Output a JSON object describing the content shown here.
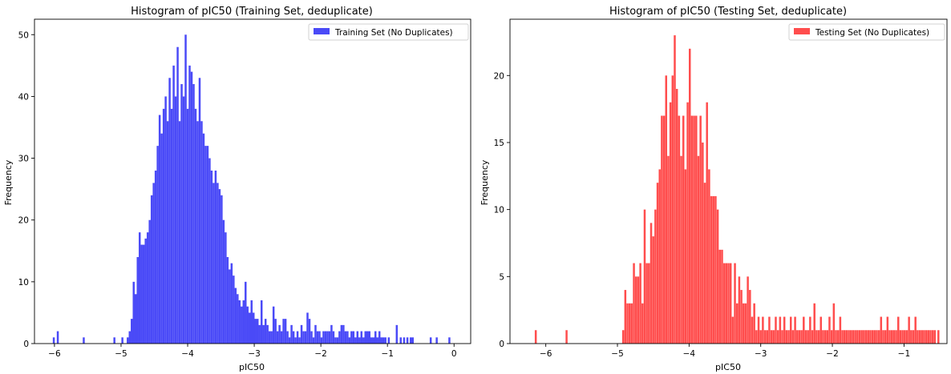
{
  "chart_data": [
    {
      "type": "bar",
      "title": "Histogram of pIC50 (Training Set, deduplicate)",
      "xlabel": "pIC50",
      "ylabel": "Frequency",
      "xlim": [
        -6.3,
        0.25
      ],
      "ylim": [
        0,
        52.5
      ],
      "xticks": [
        -6,
        -5,
        -4,
        -3,
        -2,
        -1,
        0
      ],
      "yticks": [
        0,
        10,
        20,
        30,
        40,
        50
      ],
      "legend": {
        "placement": "top-right",
        "label": "Training Set (No Duplicates)"
      },
      "color": "#4a4af7",
      "bin_width": 0.03,
      "bins": [
        [
          -6.01,
          1
        ],
        [
          -5.95,
          2
        ],
        [
          -5.56,
          1
        ],
        [
          -5.1,
          1
        ],
        [
          -4.98,
          1
        ],
        [
          -4.9,
          1
        ],
        [
          -4.87,
          2
        ],
        [
          -4.84,
          4
        ],
        [
          -4.81,
          10
        ],
        [
          -4.78,
          8
        ],
        [
          -4.75,
          14
        ],
        [
          -4.72,
          18
        ],
        [
          -4.69,
          16
        ],
        [
          -4.66,
          16
        ],
        [
          -4.63,
          17
        ],
        [
          -4.6,
          18
        ],
        [
          -4.57,
          20
        ],
        [
          -4.54,
          24
        ],
        [
          -4.51,
          26
        ],
        [
          -4.48,
          28
        ],
        [
          -4.45,
          32
        ],
        [
          -4.42,
          37
        ],
        [
          -4.39,
          34
        ],
        [
          -4.36,
          38
        ],
        [
          -4.33,
          40
        ],
        [
          -4.3,
          36
        ],
        [
          -4.27,
          43
        ],
        [
          -4.24,
          38
        ],
        [
          -4.21,
          45
        ],
        [
          -4.18,
          40
        ],
        [
          -4.15,
          48
        ],
        [
          -4.12,
          36
        ],
        [
          -4.09,
          42
        ],
        [
          -4.06,
          40
        ],
        [
          -4.03,
          50
        ],
        [
          -4.0,
          38
        ],
        [
          -3.97,
          45
        ],
        [
          -3.94,
          44
        ],
        [
          -3.91,
          42
        ],
        [
          -3.88,
          38
        ],
        [
          -3.85,
          36
        ],
        [
          -3.82,
          43
        ],
        [
          -3.79,
          36
        ],
        [
          -3.76,
          34
        ],
        [
          -3.73,
          32
        ],
        [
          -3.7,
          32
        ],
        [
          -3.67,
          30
        ],
        [
          -3.64,
          28
        ],
        [
          -3.61,
          26
        ],
        [
          -3.58,
          28
        ],
        [
          -3.55,
          26
        ],
        [
          -3.52,
          25
        ],
        [
          -3.49,
          24
        ],
        [
          -3.46,
          20
        ],
        [
          -3.43,
          18
        ],
        [
          -3.4,
          14
        ],
        [
          -3.37,
          12
        ],
        [
          -3.34,
          13
        ],
        [
          -3.31,
          11
        ],
        [
          -3.28,
          9
        ],
        [
          -3.25,
          8
        ],
        [
          -3.22,
          7
        ],
        [
          -3.19,
          6
        ],
        [
          -3.16,
          7
        ],
        [
          -3.13,
          10
        ],
        [
          -3.1,
          6
        ],
        [
          -3.07,
          5
        ],
        [
          -3.04,
          7
        ],
        [
          -3.01,
          5
        ],
        [
          -2.98,
          4
        ],
        [
          -2.95,
          4
        ],
        [
          -2.92,
          3
        ],
        [
          -2.89,
          7
        ],
        [
          -2.86,
          3
        ],
        [
          -2.83,
          4
        ],
        [
          -2.8,
          3
        ],
        [
          -2.77,
          2
        ],
        [
          -2.74,
          2
        ],
        [
          -2.71,
          6
        ],
        [
          -2.68,
          4
        ],
        [
          -2.65,
          2
        ],
        [
          -2.62,
          3
        ],
        [
          -2.59,
          2
        ],
        [
          -2.56,
          4
        ],
        [
          -2.53,
          4
        ],
        [
          -2.5,
          2
        ],
        [
          -2.47,
          1
        ],
        [
          -2.44,
          3
        ],
        [
          -2.41,
          2
        ],
        [
          -2.38,
          1
        ],
        [
          -2.35,
          2
        ],
        [
          -2.32,
          1
        ],
        [
          -2.29,
          3
        ],
        [
          -2.26,
          2
        ],
        [
          -2.23,
          2
        ],
        [
          -2.2,
          5
        ],
        [
          -2.17,
          4
        ],
        [
          -2.14,
          2
        ],
        [
          -2.11,
          1
        ],
        [
          -2.08,
          3
        ],
        [
          -2.05,
          2
        ],
        [
          -2.02,
          2
        ],
        [
          -1.99,
          1
        ],
        [
          -1.96,
          2
        ],
        [
          -1.93,
          2
        ],
        [
          -1.9,
          2
        ],
        [
          -1.87,
          2
        ],
        [
          -1.84,
          3
        ],
        [
          -1.81,
          2
        ],
        [
          -1.78,
          1
        ],
        [
          -1.75,
          1
        ],
        [
          -1.72,
          2
        ],
        [
          -1.69,
          3
        ],
        [
          -1.66,
          3
        ],
        [
          -1.63,
          2
        ],
        [
          -1.6,
          2
        ],
        [
          -1.57,
          1
        ],
        [
          -1.54,
          2
        ],
        [
          -1.51,
          2
        ],
        [
          -1.48,
          1
        ],
        [
          -1.45,
          2
        ],
        [
          -1.42,
          1
        ],
        [
          -1.39,
          2
        ],
        [
          -1.36,
          1
        ],
        [
          -1.33,
          2
        ],
        [
          -1.3,
          2
        ],
        [
          -1.27,
          2
        ],
        [
          -1.24,
          1
        ],
        [
          -1.21,
          1
        ],
        [
          -1.18,
          2
        ],
        [
          -1.15,
          1
        ],
        [
          -1.12,
          2
        ],
        [
          -1.09,
          1
        ],
        [
          -1.06,
          1
        ],
        [
          -1.03,
          1
        ],
        [
          -0.98,
          1
        ],
        [
          -0.86,
          3
        ],
        [
          -0.8,
          1
        ],
        [
          -0.75,
          1
        ],
        [
          -0.7,
          1
        ],
        [
          -0.65,
          1
        ],
        [
          -0.62,
          1
        ],
        [
          -0.35,
          1
        ],
        [
          -0.26,
          1
        ],
        [
          -0.07,
          1
        ]
      ]
    },
    {
      "type": "bar",
      "title": "Histogram of pIC50 (Testing Set, deduplicate)",
      "xlabel": "pIC50",
      "ylabel": "Frequency",
      "xlim": [
        -6.5,
        -0.4
      ],
      "ylim": [
        0,
        24.2
      ],
      "xticks": [
        -6,
        -5,
        -4,
        -3,
        -2,
        -1
      ],
      "yticks": [
        0,
        5,
        10,
        15,
        20
      ],
      "legend": {
        "placement": "top-right",
        "label": "Testing Set (No Duplicates)"
      },
      "color": "#ff4d4d",
      "bin_width": 0.028,
      "bins": [
        [
          -6.14,
          1
        ],
        [
          -5.71,
          1
        ],
        [
          -4.92,
          1
        ],
        [
          -4.89,
          4
        ],
        [
          -4.86,
          3
        ],
        [
          -4.83,
          3
        ],
        [
          -4.8,
          3
        ],
        [
          -4.77,
          6
        ],
        [
          -4.74,
          5
        ],
        [
          -4.71,
          5
        ],
        [
          -4.68,
          6
        ],
        [
          -4.65,
          3
        ],
        [
          -4.62,
          10
        ],
        [
          -4.59,
          6
        ],
        [
          -4.56,
          6
        ],
        [
          -4.53,
          9
        ],
        [
          -4.5,
          8
        ],
        [
          -4.47,
          10
        ],
        [
          -4.44,
          12
        ],
        [
          -4.41,
          13
        ],
        [
          -4.38,
          17
        ],
        [
          -4.35,
          17
        ],
        [
          -4.32,
          20
        ],
        [
          -4.29,
          14
        ],
        [
          -4.26,
          18
        ],
        [
          -4.23,
          20
        ],
        [
          -4.2,
          23
        ],
        [
          -4.17,
          19
        ],
        [
          -4.14,
          17
        ],
        [
          -4.11,
          14
        ],
        [
          -4.08,
          17
        ],
        [
          -4.05,
          13
        ],
        [
          -4.02,
          18
        ],
        [
          -3.99,
          22
        ],
        [
          -3.96,
          17
        ],
        [
          -3.93,
          17
        ],
        [
          -3.9,
          17
        ],
        [
          -3.87,
          14
        ],
        [
          -3.84,
          17
        ],
        [
          -3.81,
          15
        ],
        [
          -3.78,
          12
        ],
        [
          -3.75,
          18
        ],
        [
          -3.72,
          13
        ],
        [
          -3.69,
          11
        ],
        [
          -3.66,
          11
        ],
        [
          -3.63,
          11
        ],
        [
          -3.6,
          10
        ],
        [
          -3.57,
          7
        ],
        [
          -3.54,
          7
        ],
        [
          -3.51,
          6
        ],
        [
          -3.48,
          6
        ],
        [
          -3.45,
          6
        ],
        [
          -3.42,
          6
        ],
        [
          -3.39,
          2
        ],
        [
          -3.36,
          6
        ],
        [
          -3.33,
          3
        ],
        [
          -3.3,
          5
        ],
        [
          -3.27,
          4
        ],
        [
          -3.24,
          3
        ],
        [
          -3.21,
          3
        ],
        [
          -3.18,
          5
        ],
        [
          -3.15,
          4
        ],
        [
          -3.12,
          2
        ],
        [
          -3.09,
          3
        ],
        [
          -3.06,
          1
        ],
        [
          -3.03,
          2
        ],
        [
          -3.0,
          1
        ],
        [
          -2.97,
          2
        ],
        [
          -2.94,
          1
        ],
        [
          -2.91,
          1
        ],
        [
          -2.88,
          2
        ],
        [
          -2.85,
          1
        ],
        [
          -2.82,
          1
        ],
        [
          -2.79,
          2
        ],
        [
          -2.76,
          1
        ],
        [
          -2.73,
          2
        ],
        [
          -2.7,
          1
        ],
        [
          -2.67,
          2
        ],
        [
          -2.64,
          1
        ],
        [
          -2.61,
          1
        ],
        [
          -2.58,
          2
        ],
        [
          -2.55,
          1
        ],
        [
          -2.52,
          2
        ],
        [
          -2.49,
          1
        ],
        [
          -2.46,
          1
        ],
        [
          -2.43,
          1
        ],
        [
          -2.4,
          2
        ],
        [
          -2.37,
          1
        ],
        [
          -2.34,
          1
        ],
        [
          -2.31,
          2
        ],
        [
          -2.28,
          1
        ],
        [
          -2.25,
          3
        ],
        [
          -2.22,
          1
        ],
        [
          -2.19,
          1
        ],
        [
          -2.16,
          2
        ],
        [
          -2.13,
          1
        ],
        [
          -2.1,
          1
        ],
        [
          -2.07,
          1
        ],
        [
          -2.04,
          2
        ],
        [
          -2.01,
          1
        ],
        [
          -1.98,
          3
        ],
        [
          -1.95,
          1
        ],
        [
          -1.92,
          1
        ],
        [
          -1.89,
          2
        ],
        [
          -1.86,
          1
        ],
        [
          -1.83,
          1
        ],
        [
          -1.8,
          1
        ],
        [
          -1.77,
          1
        ],
        [
          -1.74,
          1
        ],
        [
          -1.71,
          1
        ],
        [
          -1.68,
          1
        ],
        [
          -1.65,
          1
        ],
        [
          -1.62,
          1
        ],
        [
          -1.59,
          1
        ],
        [
          -1.56,
          1
        ],
        [
          -1.53,
          1
        ],
        [
          -1.5,
          1
        ],
        [
          -1.47,
          1
        ],
        [
          -1.44,
          1
        ],
        [
          -1.41,
          1
        ],
        [
          -1.38,
          1
        ],
        [
          -1.35,
          1
        ],
        [
          -1.32,
          2
        ],
        [
          -1.29,
          1
        ],
        [
          -1.26,
          1
        ],
        [
          -1.23,
          2
        ],
        [
          -1.2,
          1
        ],
        [
          -1.17,
          1
        ],
        [
          -1.14,
          1
        ],
        [
          -1.11,
          1
        ],
        [
          -1.08,
          2
        ],
        [
          -1.05,
          1
        ],
        [
          -1.02,
          1
        ],
        [
          -0.99,
          1
        ],
        [
          -0.96,
          1
        ],
        [
          -0.93,
          2
        ],
        [
          -0.9,
          1
        ],
        [
          -0.87,
          1
        ],
        [
          -0.84,
          2
        ],
        [
          -0.81,
          1
        ],
        [
          -0.78,
          1
        ],
        [
          -0.75,
          1
        ],
        [
          -0.72,
          1
        ],
        [
          -0.69,
          1
        ],
        [
          -0.66,
          1
        ],
        [
          -0.63,
          1
        ],
        [
          -0.6,
          1
        ],
        [
          -0.57,
          1
        ],
        [
          -0.52,
          1
        ]
      ]
    }
  ]
}
